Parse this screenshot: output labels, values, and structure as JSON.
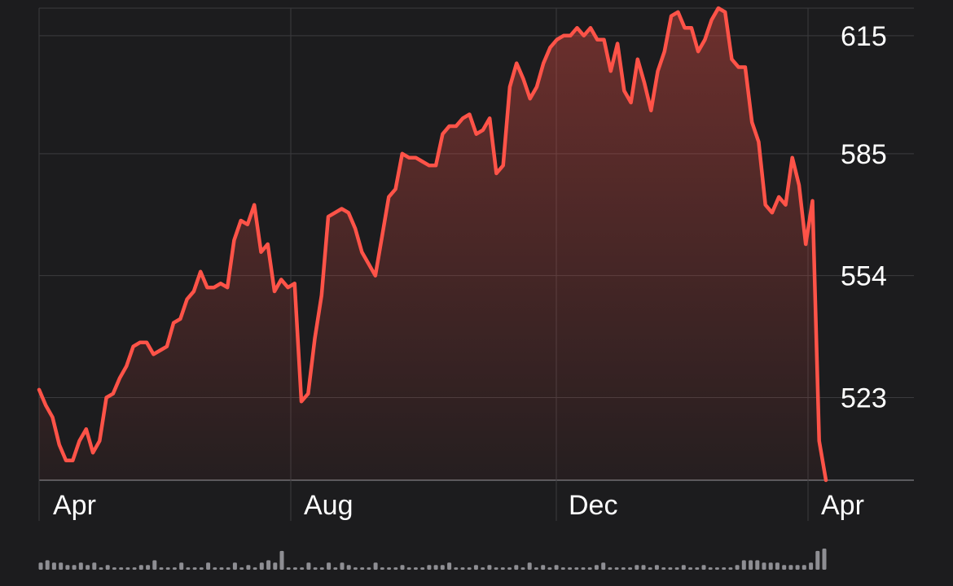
{
  "chart_data": {
    "type": "area",
    "x_tick_labels": [
      "Apr",
      "Aug",
      "Dec",
      "Apr"
    ],
    "y_tick_labels": [
      "615",
      "585",
      "554",
      "523"
    ],
    "y_ticks": [
      615,
      585,
      554,
      523
    ],
    "ylim": [
      502,
      622
    ],
    "grid": true,
    "series": [
      {
        "values": [
          525,
          521,
          518,
          511,
          507,
          507,
          512,
          515,
          509,
          512,
          523,
          524,
          528,
          531,
          536,
          537,
          537,
          534,
          535,
          536,
          542,
          543,
          548,
          550,
          555,
          551,
          551,
          552,
          551,
          563,
          568,
          567,
          572,
          560,
          562,
          550,
          553,
          551,
          552,
          522,
          524,
          538,
          549,
          569,
          570,
          571,
          570,
          566,
          560,
          557,
          554,
          564,
          574,
          576,
          585,
          584,
          584,
          583,
          582,
          582,
          590,
          592,
          592,
          594,
          595,
          590,
          591,
          594,
          580,
          582,
          602,
          608,
          604,
          599,
          602,
          608,
          612,
          614,
          615,
          615,
          617,
          615,
          617,
          614,
          614,
          606,
          613,
          601,
          598,
          609,
          603,
          596,
          606,
          611,
          620,
          621,
          617,
          617,
          611,
          614,
          619,
          622,
          621,
          609,
          607,
          607,
          593,
          588,
          572,
          570,
          574,
          572,
          584,
          577,
          562,
          573,
          512,
          502
        ],
        "color": "#ff5348"
      }
    ],
    "volume": [
      3,
      4,
      3,
      3,
      2,
      2,
      3,
      2,
      3,
      1,
      2,
      1,
      1,
      1,
      1,
      2,
      2,
      4,
      1,
      1,
      1,
      3,
      1,
      1,
      1,
      3,
      1,
      1,
      1,
      3,
      1,
      2,
      1,
      3,
      4,
      3,
      8,
      1,
      1,
      1,
      3,
      1,
      1,
      3,
      1,
      3,
      2,
      1,
      1,
      1,
      3,
      1,
      1,
      1,
      2,
      1,
      1,
      1,
      2,
      2,
      2,
      3,
      1,
      1,
      1,
      2,
      1,
      2,
      1,
      1,
      1,
      2,
      1,
      3,
      1,
      2,
      1,
      2,
      1,
      1,
      1,
      1,
      1,
      2,
      3,
      1,
      1,
      1,
      1,
      2,
      2,
      1,
      2,
      1,
      1,
      1,
      2,
      1,
      1,
      2,
      1,
      1,
      1,
      1,
      2,
      4,
      4,
      4,
      3,
      3,
      3,
      2,
      2,
      2,
      2,
      3,
      8,
      9
    ],
    "colors": {
      "background": "#1c1c1e",
      "line": "#ff5348",
      "grid": "#3b3b3e",
      "volume": "#8e8e93",
      "label": "#ffffff"
    }
  }
}
